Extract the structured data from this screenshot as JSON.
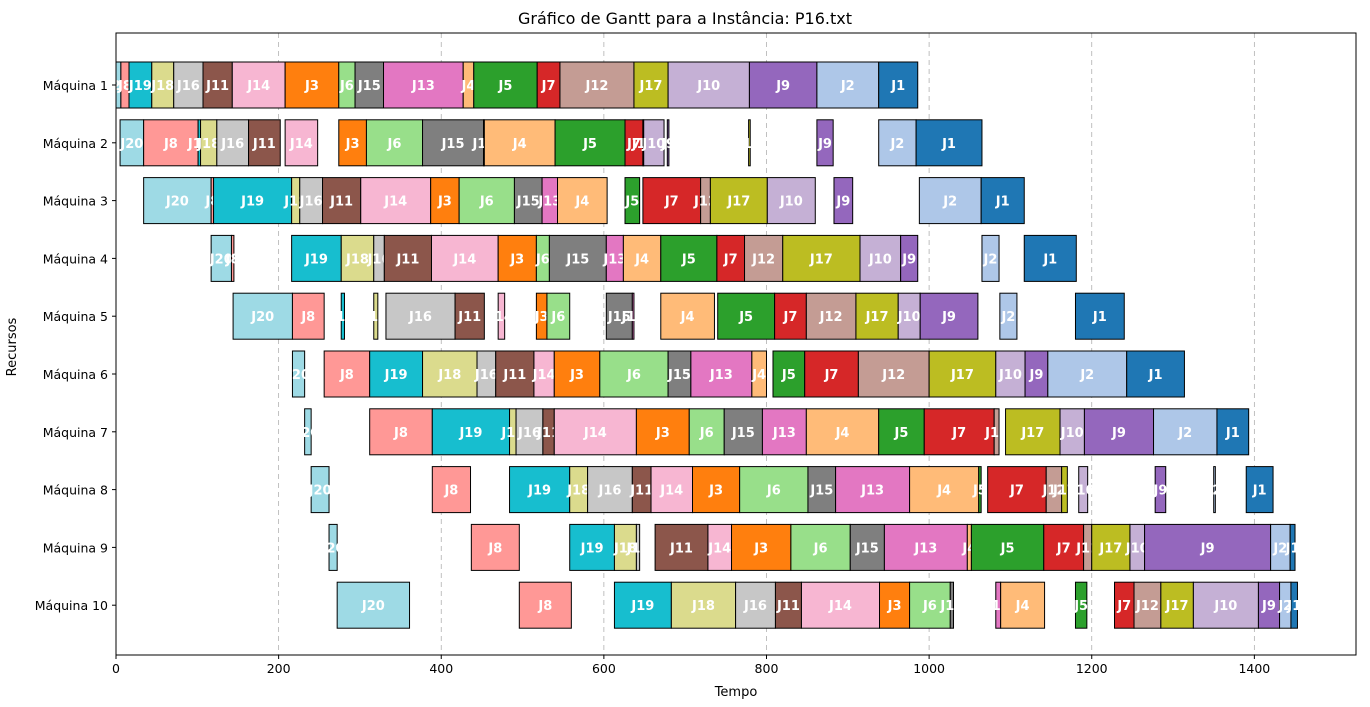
{
  "chart_data": {
    "type": "gantt",
    "title": "Gráfico de Gantt para a Instância: P16.txt",
    "xlabel": "Tempo",
    "ylabel": "Recursos",
    "xlim": [
      0,
      1525
    ],
    "xticks": [
      0,
      200,
      400,
      600,
      800,
      1000,
      1200,
      1400
    ],
    "grid": "vertical-dashed",
    "colors": {
      "J1": "#1f77b4",
      "J2": "#aec7e8",
      "J3": "#ff7f0e",
      "J4": "#ffbb78",
      "J5": "#2ca02c",
      "J6": "#98df8a",
      "J7": "#d62728",
      "J8": "#ff9896",
      "J9": "#9467bd",
      "J10": "#c5b0d5",
      "J11": "#8c564b",
      "J12": "#c49c94",
      "J13": "#e377c2",
      "J14": "#f7b6d2",
      "J15": "#7f7f7f",
      "J16": "#c7c7c7",
      "J17": "#bcbd22",
      "J18": "#dbdb8d",
      "J19": "#17becf",
      "J20": "#9edae5"
    },
    "machines": [
      {
        "name": "Máquina 1",
        "tasks": [
          [
            "J20",
            0,
            6
          ],
          [
            "J8",
            6,
            16
          ],
          [
            "J19",
            16,
            44
          ],
          [
            "J18",
            44,
            71
          ],
          [
            "J16",
            71,
            107
          ],
          [
            "J11",
            107,
            143
          ],
          [
            "J14",
            143,
            208
          ],
          [
            "J3",
            208,
            274
          ],
          [
            "J6",
            274,
            294
          ],
          [
            "J15",
            294,
            329
          ],
          [
            "J13",
            329,
            427
          ],
          [
            "J4",
            427,
            440
          ],
          [
            "J5",
            440,
            518
          ],
          [
            "J7",
            518,
            546
          ],
          [
            "J12",
            546,
            637
          ],
          [
            "J17",
            637,
            679
          ],
          [
            "J10",
            679,
            779
          ],
          [
            "J9",
            779,
            862
          ],
          [
            "J2",
            862,
            938
          ],
          [
            "J1",
            938,
            986
          ]
        ]
      },
      {
        "name": "Máquina 2",
        "tasks": [
          [
            "J20",
            5,
            34
          ],
          [
            "J8",
            34,
            101
          ],
          [
            "J19",
            101,
            104
          ],
          [
            "J18",
            104,
            124
          ],
          [
            "J16",
            124,
            163
          ],
          [
            "J11",
            163,
            202
          ],
          [
            "J14",
            208,
            248
          ],
          [
            "J3",
            274,
            308
          ],
          [
            "J6",
            308,
            377
          ],
          [
            "J15",
            377,
            452
          ],
          [
            "J13",
            452,
            453
          ],
          [
            "J4",
            453,
            540
          ],
          [
            "J5",
            540,
            626
          ],
          [
            "J7",
            626,
            648
          ],
          [
            "J12",
            648,
            649
          ],
          [
            "J10",
            649,
            674
          ],
          [
            "J9",
            678,
            680
          ],
          [
            "J17",
            778,
            780
          ],
          [
            "J9",
            862,
            882
          ],
          [
            "J2",
            938,
            984
          ],
          [
            "J1",
            984,
            1065
          ]
        ]
      },
      {
        "name": "Máquina 3",
        "tasks": [
          [
            "J20",
            34,
            117
          ],
          [
            "J8",
            117,
            120
          ],
          [
            "J19",
            120,
            216
          ],
          [
            "J18",
            216,
            226
          ],
          [
            "J16",
            226,
            254
          ],
          [
            "J11",
            254,
            301
          ],
          [
            "J14",
            301,
            387
          ],
          [
            "J3",
            387,
            422
          ],
          [
            "J6",
            422,
            490
          ],
          [
            "J15",
            490,
            524
          ],
          [
            "J13",
            524,
            543
          ],
          [
            "J4",
            543,
            604
          ],
          [
            "J5",
            626,
            644
          ],
          [
            "J7",
            648,
            719
          ],
          [
            "J12",
            719,
            731
          ],
          [
            "J17",
            731,
            801
          ],
          [
            "J10",
            801,
            860
          ],
          [
            "J9",
            883,
            906
          ],
          [
            "J2",
            988,
            1064
          ],
          [
            "J1",
            1064,
            1117
          ]
        ]
      },
      {
        "name": "Máquina 4",
        "tasks": [
          [
            "J20",
            117,
            142
          ],
          [
            "J8",
            142,
            145
          ],
          [
            "J19",
            216,
            277
          ],
          [
            "J18",
            277,
            317
          ],
          [
            "J16",
            317,
            330
          ],
          [
            "J11",
            330,
            388
          ],
          [
            "J14",
            388,
            470
          ],
          [
            "J3",
            470,
            517
          ],
          [
            "J6",
            517,
            533
          ],
          [
            "J15",
            533,
            603
          ],
          [
            "J13",
            603,
            624
          ],
          [
            "J4",
            624,
            670
          ],
          [
            "J5",
            670,
            739
          ],
          [
            "J7",
            739,
            773
          ],
          [
            "J12",
            773,
            820
          ],
          [
            "J17",
            820,
            915
          ],
          [
            "J10",
            915,
            965
          ],
          [
            "J9",
            965,
            986
          ],
          [
            "J2",
            1065,
            1086
          ],
          [
            "J1",
            1117,
            1181
          ]
        ]
      },
      {
        "name": "Máquina 5",
        "tasks": [
          [
            "J20",
            144,
            217
          ],
          [
            "J8",
            217,
            256
          ],
          [
            "J19",
            277,
            281
          ],
          [
            "J18",
            317,
            322
          ],
          [
            "J16",
            332,
            417
          ],
          [
            "J11",
            417,
            453
          ],
          [
            "J14",
            470,
            478
          ],
          [
            "J3",
            517,
            530
          ],
          [
            "J6",
            530,
            558
          ],
          [
            "J15",
            603,
            635
          ],
          [
            "J13",
            635,
            637
          ],
          [
            "J4",
            670,
            736
          ],
          [
            "J5",
            740,
            810
          ],
          [
            "J7",
            810,
            849
          ],
          [
            "J12",
            849,
            910
          ],
          [
            "J17",
            910,
            962
          ],
          [
            "J10",
            962,
            989
          ],
          [
            "J9",
            989,
            1060
          ],
          [
            "J2",
            1087,
            1108
          ],
          [
            "J1",
            1180,
            1240
          ]
        ]
      },
      {
        "name": "Máquina 6",
        "tasks": [
          [
            "J20",
            217,
            232
          ],
          [
            "J8",
            256,
            312
          ],
          [
            "J19",
            312,
            377
          ],
          [
            "J18",
            377,
            444
          ],
          [
            "J16",
            444,
            467
          ],
          [
            "J11",
            467,
            514
          ],
          [
            "J14",
            514,
            539
          ],
          [
            "J3",
            539,
            595
          ],
          [
            "J6",
            595,
            679
          ],
          [
            "J15",
            679,
            707
          ],
          [
            "J13",
            707,
            782
          ],
          [
            "J4",
            782,
            800
          ],
          [
            "J5",
            808,
            847
          ],
          [
            "J7",
            847,
            913
          ],
          [
            "J12",
            913,
            1000
          ],
          [
            "J17",
            1000,
            1082
          ],
          [
            "J10",
            1082,
            1118
          ],
          [
            "J9",
            1118,
            1146
          ],
          [
            "J2",
            1146,
            1243
          ],
          [
            "J1",
            1243,
            1314
          ]
        ]
      },
      {
        "name": "Máquina 7",
        "tasks": [
          [
            "J20",
            232,
            240
          ],
          [
            "J8",
            312,
            389
          ],
          [
            "J19",
            389,
            484
          ],
          [
            "J18",
            484,
            492
          ],
          [
            "J16",
            492,
            525
          ],
          [
            "J11",
            525,
            539
          ],
          [
            "J14",
            539,
            640
          ],
          [
            "J3",
            640,
            705
          ],
          [
            "J6",
            705,
            748
          ],
          [
            "J15",
            748,
            795
          ],
          [
            "J13",
            795,
            849
          ],
          [
            "J4",
            849,
            938
          ],
          [
            "J5",
            938,
            994
          ],
          [
            "J7",
            994,
            1080
          ],
          [
            "J12",
            1080,
            1086
          ],
          [
            "J17",
            1094,
            1161
          ],
          [
            "J10",
            1161,
            1191
          ],
          [
            "J9",
            1191,
            1276
          ],
          [
            "J2",
            1276,
            1354
          ],
          [
            "J1",
            1354,
            1393
          ]
        ]
      },
      {
        "name": "Máquina 8",
        "tasks": [
          [
            "J20",
            240,
            262
          ],
          [
            "J8",
            389,
            436
          ],
          [
            "J19",
            484,
            558
          ],
          [
            "J18",
            558,
            580
          ],
          [
            "J16",
            580,
            635
          ],
          [
            "J11",
            635,
            658
          ],
          [
            "J14",
            658,
            709
          ],
          [
            "J3",
            709,
            767
          ],
          [
            "J6",
            767,
            851
          ],
          [
            "J15",
            851,
            885
          ],
          [
            "J13",
            885,
            976
          ],
          [
            "J4",
            976,
            1061
          ],
          [
            "J5",
            1061,
            1064
          ],
          [
            "J7",
            1072,
            1144
          ],
          [
            "J12",
            1144,
            1163
          ],
          [
            "J17",
            1163,
            1170
          ],
          [
            "J10",
            1184,
            1195
          ],
          [
            "J9",
            1278,
            1291
          ],
          [
            "J2",
            1350,
            1352
          ],
          [
            "J1",
            1390,
            1423
          ]
        ]
      },
      {
        "name": "Máquina 9",
        "tasks": [
          [
            "J20",
            262,
            272
          ],
          [
            "J8",
            437,
            496
          ],
          [
            "J19",
            558,
            613
          ],
          [
            "J18",
            613,
            640
          ],
          [
            "J16",
            640,
            644
          ],
          [
            "J11",
            663,
            728
          ],
          [
            "J14",
            728,
            757
          ],
          [
            "J3",
            757,
            830
          ],
          [
            "J6",
            830,
            903
          ],
          [
            "J15",
            903,
            945
          ],
          [
            "J13",
            945,
            1047
          ],
          [
            "J4",
            1047,
            1052
          ],
          [
            "J5",
            1052,
            1141
          ],
          [
            "J7",
            1141,
            1190
          ],
          [
            "J12",
            1190,
            1200
          ],
          [
            "J17",
            1200,
            1247
          ],
          [
            "J10",
            1247,
            1265
          ],
          [
            "J9",
            1265,
            1420
          ],
          [
            "J2",
            1420,
            1444
          ],
          [
            "J1",
            1444,
            1450
          ]
        ]
      },
      {
        "name": "Máquina 10",
        "tasks": [
          [
            "J20",
            272,
            361
          ],
          [
            "J8",
            496,
            560
          ],
          [
            "J19",
            613,
            683
          ],
          [
            "J18",
            683,
            762
          ],
          [
            "J16",
            762,
            811
          ],
          [
            "J11",
            811,
            843
          ],
          [
            "J14",
            843,
            939
          ],
          [
            "J3",
            939,
            976
          ],
          [
            "J6",
            976,
            1026
          ],
          [
            "J15",
            1026,
            1030
          ],
          [
            "J13",
            1082,
            1088
          ],
          [
            "J4",
            1088,
            1142
          ],
          [
            "J5",
            1180,
            1194
          ],
          [
            "J7",
            1228,
            1252
          ],
          [
            "J12",
            1252,
            1285
          ],
          [
            "J17",
            1285,
            1325
          ],
          [
            "J10",
            1325,
            1405
          ],
          [
            "J9",
            1405,
            1431
          ],
          [
            "J2",
            1431,
            1445
          ],
          [
            "J1",
            1445,
            1453
          ]
        ]
      }
    ]
  }
}
